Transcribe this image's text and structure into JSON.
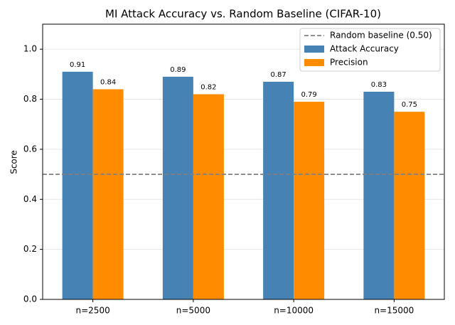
{
  "chart_data": {
    "type": "bar",
    "title": "MI Attack Accuracy vs. Random Baseline (CIFAR-10)",
    "y_label": "Score",
    "categories": [
      "n=2500",
      "n=5000",
      "n=10000",
      "n=15000"
    ],
    "series": [
      {
        "name": "Attack Accuracy",
        "color": "#4682b4",
        "values": [
          0.91,
          0.89,
          0.87,
          0.83
        ]
      },
      {
        "name": "Precision",
        "color": "#ff8c00",
        "values": [
          0.84,
          0.82,
          0.79,
          0.75
        ]
      }
    ],
    "baseline": {
      "name": "Random baseline (0.50)",
      "value": 0.5,
      "color": "#808080"
    },
    "ylim": [
      0,
      1.1
    ],
    "yticks": [
      {
        "value": 0,
        "label": "0.0"
      },
      0.2,
      0.4,
      0.6,
      0.8,
      {
        "value": 1,
        "label": "1.0"
      }
    ],
    "grid": true,
    "legend": "upper right"
  }
}
